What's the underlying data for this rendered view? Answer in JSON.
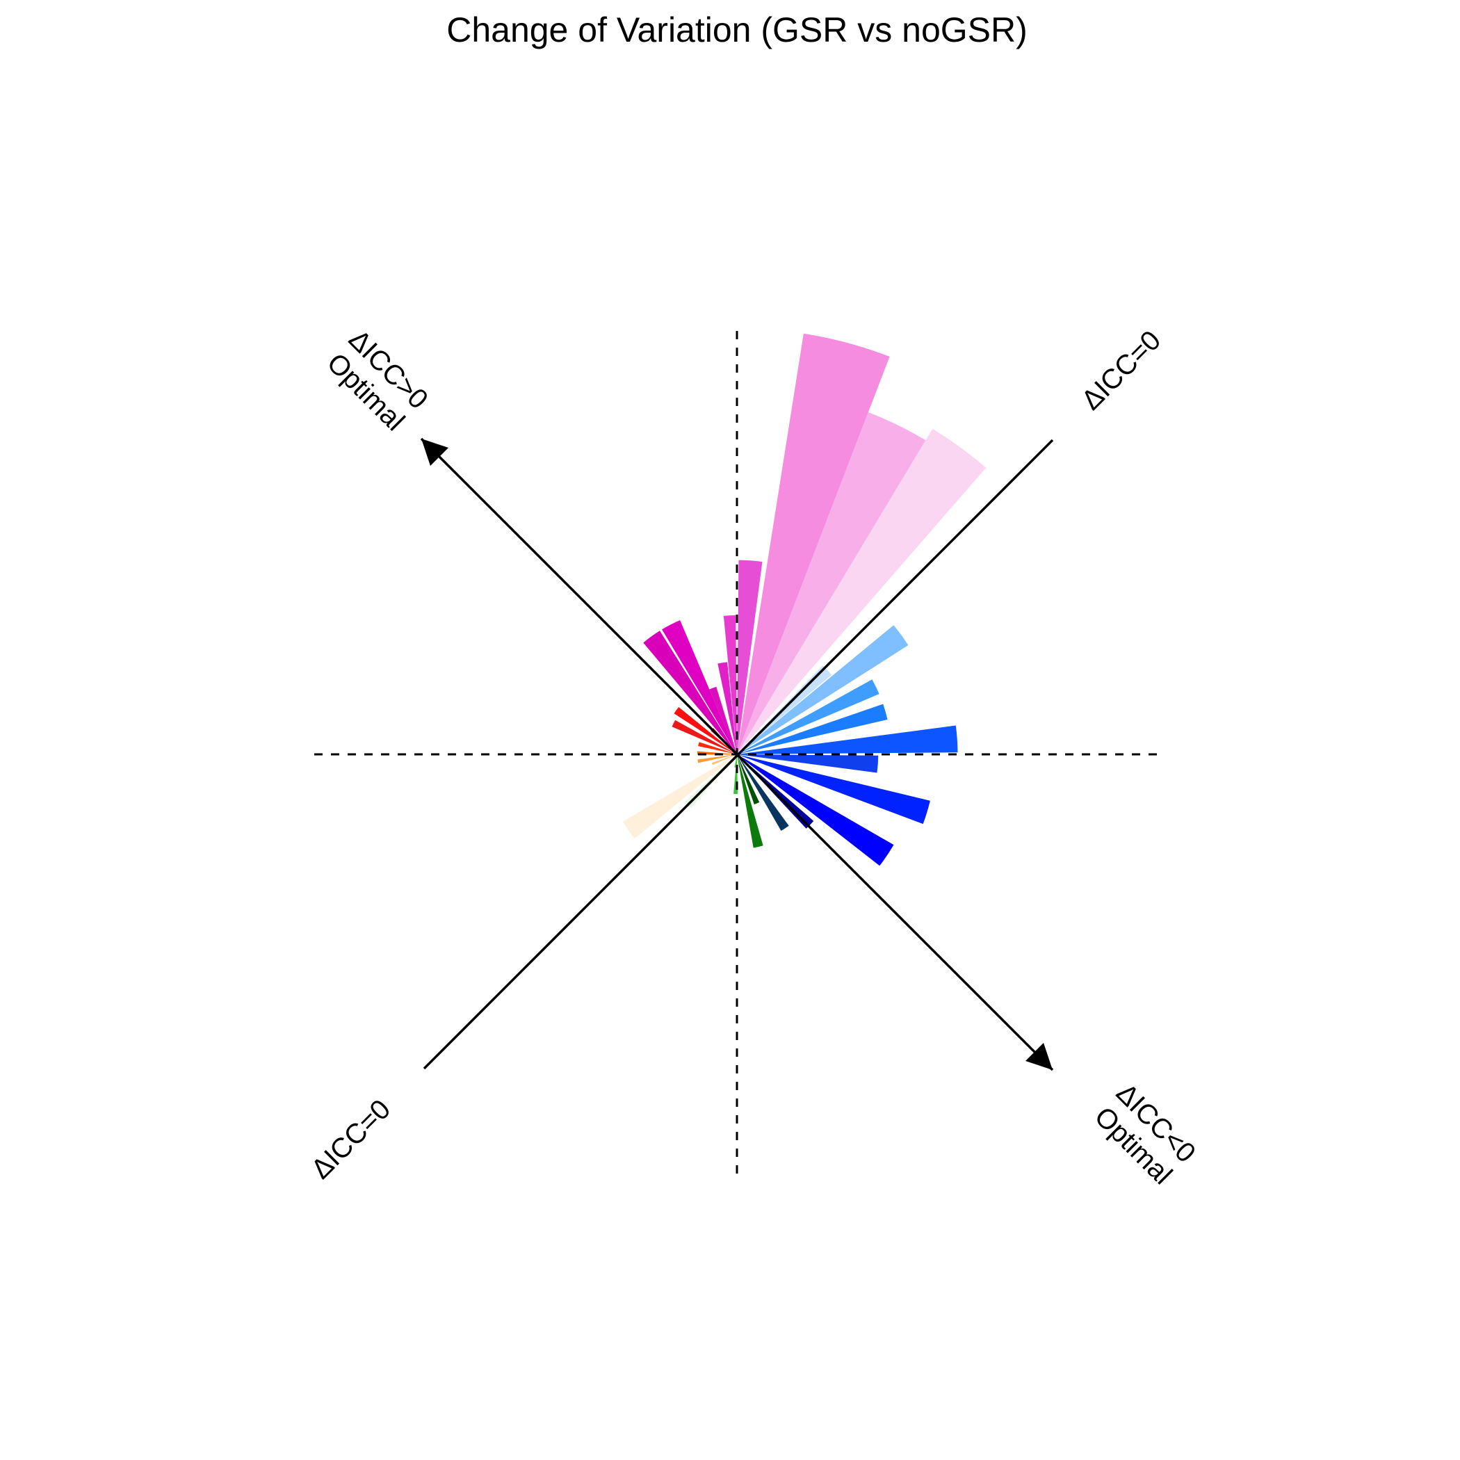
{
  "chart_data": {
    "type": "polar-bar",
    "title": "Change of Variation (GSR vs noGSR)",
    "labels": {
      "upper_left": [
        "ΔICC>0",
        "Optimal"
      ],
      "upper_right": [
        "ΔICC=0"
      ],
      "lower_left": [
        "ΔICC=0"
      ],
      "lower_right": [
        "ΔICC<0",
        "Optimal"
      ]
    },
    "rmax": 1.0,
    "bars": [
      {
        "angle": 93,
        "width": 5,
        "value": 0.315,
        "color": "#e83ccf"
      },
      {
        "angle": 86,
        "width": 7,
        "value": 0.44,
        "color": "#e64fd5"
      },
      {
        "angle": 75,
        "width": 12,
        "value": 0.965,
        "color": "#f58ce0"
      },
      {
        "angle": 64,
        "width": 10,
        "value": 0.83,
        "color": "#f8aee8"
      },
      {
        "angle": 54,
        "width": 10,
        "value": 0.86,
        "color": "#fbd6f3"
      },
      {
        "angle": 117,
        "width": 8,
        "value": 0.33,
        "color": "#e000c2"
      },
      {
        "angle": 126,
        "width": 8,
        "value": 0.33,
        "color": "#d800b8"
      },
      {
        "angle": 99,
        "width": 6,
        "value": 0.21,
        "color": "#e020c8"
      },
      {
        "angle": 110,
        "width": 6,
        "value": 0.16,
        "color": "#da10be"
      },
      {
        "angle": 144,
        "width": 6,
        "value": 0.17,
        "color": "#ff1010"
      },
      {
        "angle": 154,
        "width": 6,
        "value": 0.16,
        "color": "#ee1818"
      },
      {
        "angle": 135,
        "width": 6,
        "value": 0.08,
        "color": "#e80000"
      },
      {
        "angle": 165,
        "width": 6,
        "value": 0.09,
        "color": "#ff2a00"
      },
      {
        "angle": 178,
        "width": 5,
        "value": 0.09,
        "color": "#ff6a00"
      },
      {
        "angle": 190,
        "width": 5,
        "value": 0.09,
        "color": "#ff9a30"
      },
      {
        "angle": 201,
        "width": 5,
        "value": 0.06,
        "color": "#ffc070"
      },
      {
        "angle": 215,
        "width": 9,
        "value": 0.3,
        "color": "#fff0dc"
      },
      {
        "angle": 226,
        "width": 7,
        "value": 0.16,
        "color": "#e6f9e0"
      },
      {
        "angle": 262,
        "width": 7,
        "value": 0.03,
        "color": "#5ad05a"
      },
      {
        "angle": 268,
        "width": 6,
        "value": 0.09,
        "color": "#3cc23c"
      },
      {
        "angle": 283,
        "width": 6,
        "value": 0.215,
        "color": "#0c7a0c"
      },
      {
        "angle": 292,
        "width": 6,
        "value": 0.12,
        "color": "#005000"
      },
      {
        "angle": 303,
        "width": 6,
        "value": 0.2,
        "color": "#0a3560"
      },
      {
        "angle": 316,
        "width": 6,
        "value": 0.23,
        "color": "#00009e"
      },
      {
        "angle": 326,
        "width": 8,
        "value": 0.41,
        "color": "#0000ff"
      },
      {
        "angle": 343,
        "width": 7,
        "value": 0.45,
        "color": "#0022ff"
      },
      {
        "angle": 356,
        "width": 7,
        "value": 0.32,
        "color": "#1040ee"
      },
      {
        "angle": 4,
        "width": 7,
        "value": 0.5,
        "color": "#0d55ff"
      },
      {
        "angle": 16,
        "width": 6,
        "value": 0.35,
        "color": "#1a7cff"
      },
      {
        "angle": 26,
        "width": 6,
        "value": 0.35,
        "color": "#3e9dff"
      },
      {
        "angle": 36,
        "width": 7,
        "value": 0.46,
        "color": "#7fbfff"
      },
      {
        "angle": 43,
        "width": 6,
        "value": 0.28,
        "color": "#c6e2ff"
      }
    ]
  }
}
